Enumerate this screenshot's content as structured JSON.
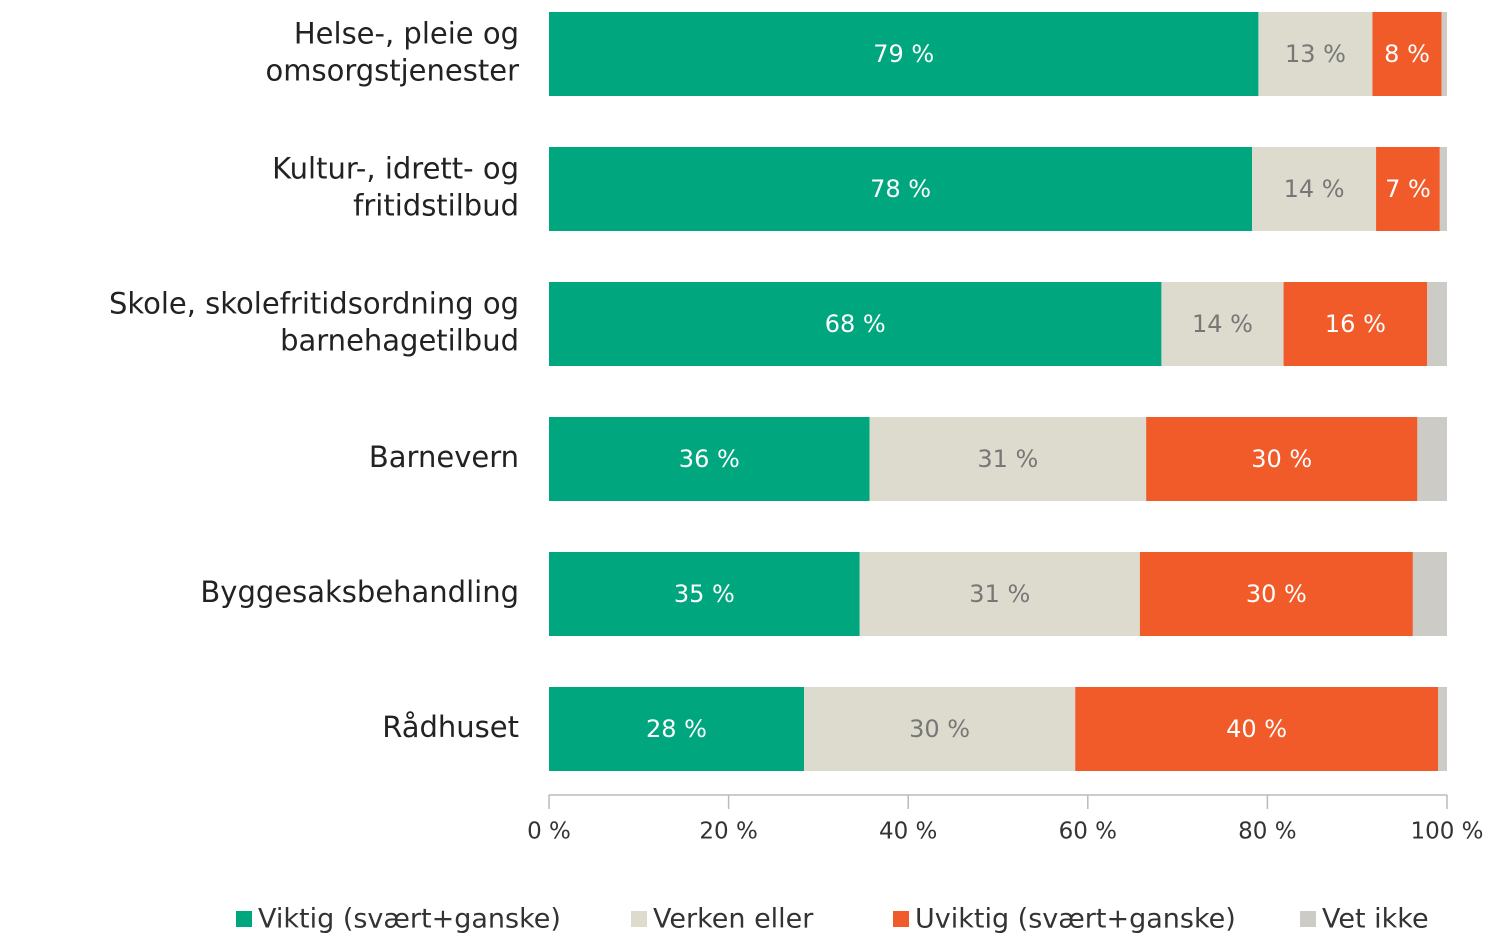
{
  "chart_data": {
    "type": "stacked-bar-horizontal",
    "categories": [
      "Helse-, pleie og omsorgstjenester",
      "Kultur-, idrett- og fritidstilbud",
      "Skole, skolefritidsordning og barnehagetilbud",
      "Barnevern",
      "Byggesaksbehandling",
      "Rådhuset"
    ],
    "series": [
      {
        "name": "Viktig (svært+ganske)",
        "color": "#00a67e",
        "label_color": "#ffffff",
        "values": [
          79.0,
          78.3,
          68.2,
          35.7,
          34.6,
          28.4
        ],
        "value_labels": [
          "79 %",
          "78 %",
          "68 %",
          "36 %",
          "35 %",
          "28 %"
        ]
      },
      {
        "name": "Verken eller",
        "color": "#dddbcd",
        "label_color": "#777777",
        "values": [
          12.7,
          13.8,
          13.6,
          30.8,
          31.2,
          30.2
        ],
        "value_labels": [
          "13 %",
          "14 %",
          "14 %",
          "31 %",
          "31 %",
          "30 %"
        ]
      },
      {
        "name": "Uviktig (svært+ganske)",
        "color": "#f15a29",
        "label_color": "#ffffff",
        "values": [
          7.7,
          7.1,
          16.0,
          30.2,
          30.4,
          40.4
        ],
        "value_labels": [
          "8 %",
          "7 %",
          "16 %",
          "30 %",
          "30 %",
          "40 %"
        ]
      },
      {
        "name": "Vet ikke",
        "color": "#cccbc5",
        "values": [
          0.6,
          0.8,
          2.2,
          3.3,
          3.8,
          1.0
        ]
      }
    ],
    "xlim": [
      0,
      100
    ],
    "xticks": [
      {
        "value": 0,
        "label": "0 %"
      },
      {
        "value": 20,
        "label": "20 %"
      },
      {
        "value": 40,
        "label": "40 %"
      },
      {
        "value": 60,
        "label": "60 %"
      },
      {
        "value": 80,
        "label": "80 %"
      },
      {
        "value": 100,
        "label": "100 %"
      }
    ],
    "legend": "bottom"
  }
}
